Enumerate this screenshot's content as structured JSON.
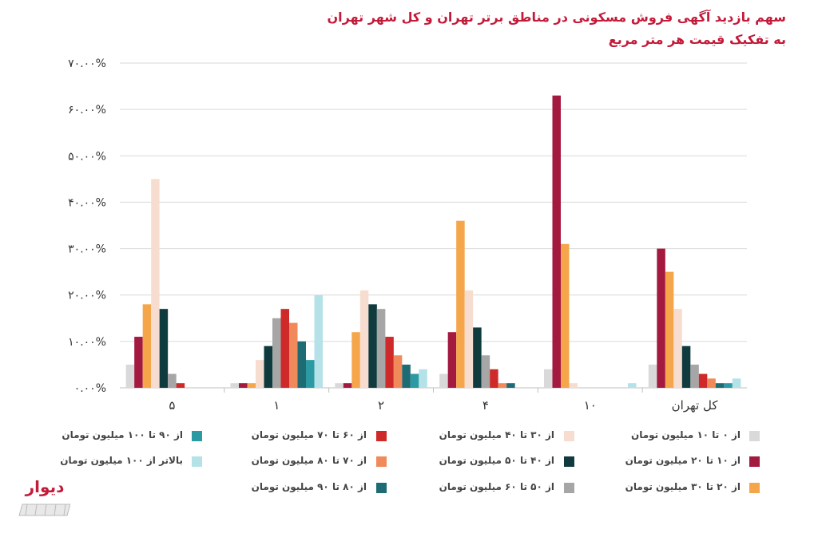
{
  "title": {
    "line1": "سهم بازدید آگهی فروش مسکونی در مناطق برتر تهران و کل شهر تهران",
    "line2": "به تفکیک قیمت هر متر مربع"
  },
  "logo_text": "دیوار",
  "colors": {
    "title": "#c41a3a",
    "axis_text": "#333333",
    "grid": "#d9d9d9"
  },
  "chart_data": {
    "type": "bar",
    "title": "سهم بازدید آگهی فروش مسکونی در مناطق برتر تهران و کل شهر تهران",
    "subtitle": "به تفکیک قیمت هر متر مربع",
    "categories": [
      "کل تهران",
      "۱۰",
      "۴",
      "۲",
      "۱",
      "۵"
    ],
    "y_tick_labels": [
      "۰.۰۰%",
      "۱۰.۰۰%",
      "۲۰.۰۰%",
      "۳۰.۰۰%",
      "۴۰.۰۰%",
      "۵۰.۰۰%",
      "۶۰.۰۰%",
      "۷۰.۰۰%"
    ],
    "ylim": [
      0,
      70
    ],
    "grid": true,
    "legend_position": "bottom",
    "series": [
      {
        "name": "از ۰ تا ۱۰ میلیون تومان",
        "color": "#d9d9d9",
        "values": [
          5,
          4,
          3,
          1,
          1,
          5
        ]
      },
      {
        "name": "از ۱۰ تا ۲۰ میلیون تومان",
        "color": "#a3193f",
        "values": [
          30,
          63,
          12,
          1,
          1,
          11
        ]
      },
      {
        "name": "از ۲۰ تا ۳۰ میلیون تومان",
        "color": "#f5a54a",
        "values": [
          25,
          31,
          36,
          12,
          1,
          18
        ]
      },
      {
        "name": "از ۳۰ تا ۴۰ میلیون تومان",
        "color": "#f7ddd0",
        "values": [
          17,
          1,
          21,
          21,
          6,
          45
        ]
      },
      {
        "name": "از ۴۰ تا ۵۰ میلیون تومان",
        "color": "#0f3b3f",
        "values": [
          9,
          0,
          13,
          18,
          9,
          17
        ]
      },
      {
        "name": "از ۵۰ تا ۶۰ میلیون تومان",
        "color": "#a6a6a6",
        "values": [
          5,
          0,
          7,
          17,
          15,
          3
        ]
      },
      {
        "name": "از ۶۰ تا ۷۰ میلیون تومان",
        "color": "#cf2a2a",
        "values": [
          3,
          0,
          4,
          11,
          17,
          1
        ]
      },
      {
        "name": "از ۷۰ تا ۸۰ میلیون تومان",
        "color": "#f08a5b",
        "values": [
          2,
          0,
          1,
          7,
          14,
          0
        ]
      },
      {
        "name": "از ۸۰ تا ۹۰ میلیون تومان",
        "color": "#1e6b73",
        "values": [
          1,
          0,
          1,
          5,
          10,
          0
        ]
      },
      {
        "name": "از ۹۰ تا ۱۰۰ میلیون تومان",
        "color": "#2c9aa3",
        "values": [
          1,
          0,
          0,
          3,
          6,
          0
        ]
      },
      {
        "name": "بالاتر از ۱۰۰ میلیون تومان",
        "color": "#b5e2e8",
        "values": [
          2,
          1,
          0,
          4,
          20,
          0
        ]
      }
    ]
  }
}
